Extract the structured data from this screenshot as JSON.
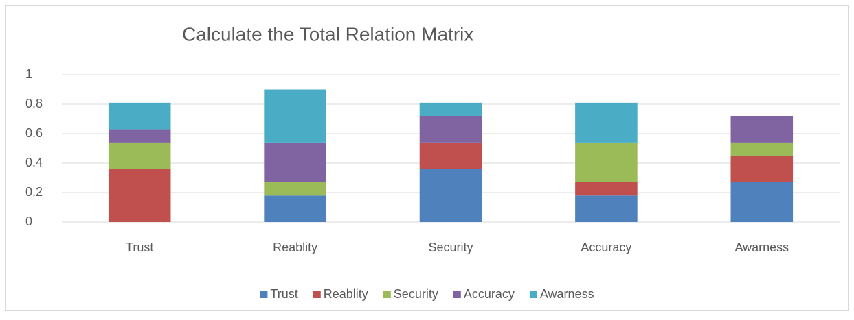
{
  "chart_data": {
    "type": "stacked_bar",
    "title": "Calculate the Total Relation Matrix",
    "categories": [
      "Trust",
      "Reablity",
      "Security",
      "Accuracy",
      "Awarness"
    ],
    "series": [
      {
        "name": "Trust",
        "color": "#4f81bd",
        "values": [
          0,
          0.18,
          0.36,
          0.18,
          0.27
        ]
      },
      {
        "name": "Reablity",
        "color": "#c0504d",
        "values": [
          0.36,
          0,
          0.18,
          0.09,
          0.18
        ]
      },
      {
        "name": "Security",
        "color": "#9bbb59",
        "values": [
          0.18,
          0.09,
          0,
          0.27,
          0.09
        ]
      },
      {
        "name": "Accuracy",
        "color": "#8064a2",
        "values": [
          0.09,
          0.27,
          0.18,
          0,
          0.18
        ]
      },
      {
        "name": "Awarness",
        "color": "#4bacc6",
        "values": [
          0.18,
          0.36,
          0.09,
          0.27,
          0
        ]
      }
    ],
    "ylim": [
      0,
      1
    ],
    "yticks": [
      0,
      0.2,
      0.4,
      0.6,
      0.8,
      1
    ],
    "grid": true,
    "legend": "bottom"
  }
}
